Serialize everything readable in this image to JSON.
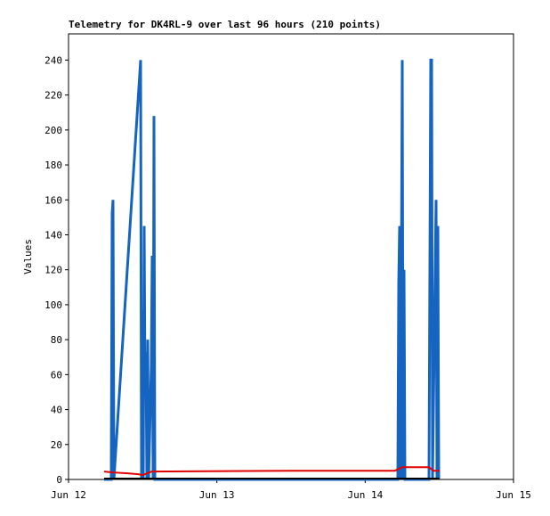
{
  "chart_data": {
    "type": "line",
    "title": "Telemetry for DK4RL-9 over last 96 hours (210 points)",
    "y_label": "Values",
    "xlim": [
      12,
      15
    ],
    "xticks": [
      {
        "value": 12,
        "label": "Jun 12"
      },
      {
        "value": 13,
        "label": "Jun 13"
      },
      {
        "value": 14,
        "label": "Jun 14"
      },
      {
        "value": 15,
        "label": "Jun 15"
      }
    ],
    "ylim": [
      0,
      255
    ],
    "yticks": [
      0,
      20,
      40,
      60,
      80,
      100,
      120,
      140,
      160,
      180,
      200,
      220,
      240
    ],
    "series": [
      {
        "color": "#1565c0",
        "width": 3,
        "x": [
          12.24,
          12.288,
          12.294,
          12.3,
          12.306,
          12.486,
          12.492,
          12.498,
          12.504,
          12.51,
          12.516,
          12.522,
          12.528,
          12.534,
          12.54,
          12.558,
          12.564,
          12.57,
          12.576,
          12.582,
          14.22,
          14.226,
          14.232,
          14.238,
          14.25,
          14.256,
          14.262,
          14.268,
          14.43,
          14.436,
          14.442,
          14.448,
          14.454,
          14.478,
          14.484,
          14.49,
          14.496
        ],
        "values": [
          0,
          0,
          152,
          160,
          0,
          240,
          0,
          97,
          0,
          145,
          48,
          73,
          0,
          80,
          0,
          65,
          128,
          0,
          208,
          0,
          0,
          112,
          145,
          0,
          240,
          0,
          120,
          0,
          0,
          120,
          240,
          240,
          0,
          160,
          0,
          145,
          0
        ]
      },
      {
        "color": "#e00000",
        "width": 2,
        "x": [
          12.24,
          12.3,
          12.4,
          12.47,
          12.5,
          12.56,
          13.5,
          14.2,
          14.25,
          14.43,
          14.46,
          14.5
        ],
        "values": [
          4.5,
          4,
          3.5,
          3,
          2.5,
          4.5,
          5,
          5,
          7,
          7,
          5,
          5
        ]
      },
      {
        "color": "#000000",
        "width": 2,
        "x": [
          12.24,
          14.5
        ],
        "values": [
          0.5,
          0.5
        ]
      }
    ]
  }
}
